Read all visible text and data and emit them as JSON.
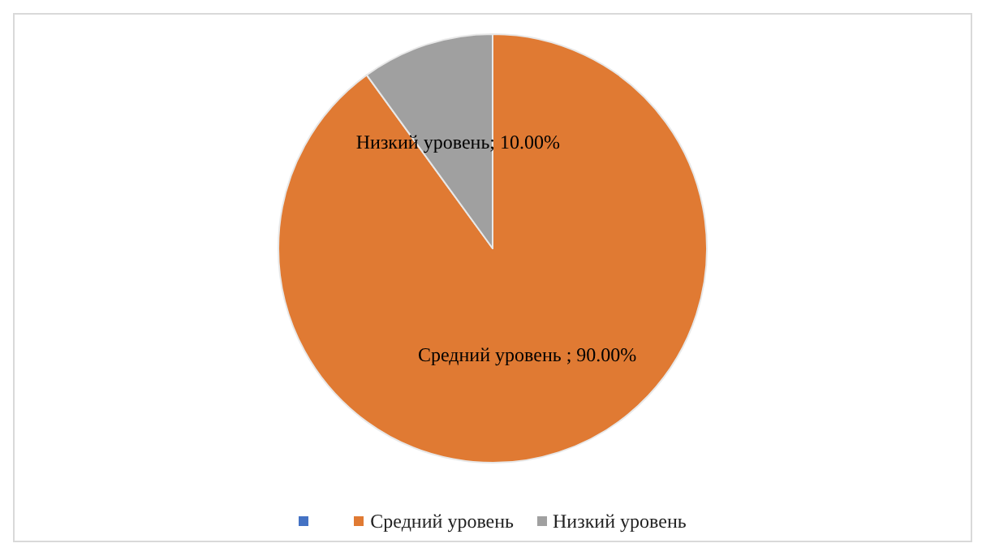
{
  "chart_data": {
    "type": "pie",
    "categories": [
      null,
      "Средний уровень",
      "Низкий уровень"
    ],
    "values": [
      0,
      90,
      10
    ],
    "colors": [
      "#4472c4",
      "#e07a33",
      "#a0a0a0"
    ],
    "value_labels": [
      null,
      "Средний уровень ; 90.00%",
      "Низкий уровень; 10.00%"
    ],
    "legend": "bottom"
  }
}
